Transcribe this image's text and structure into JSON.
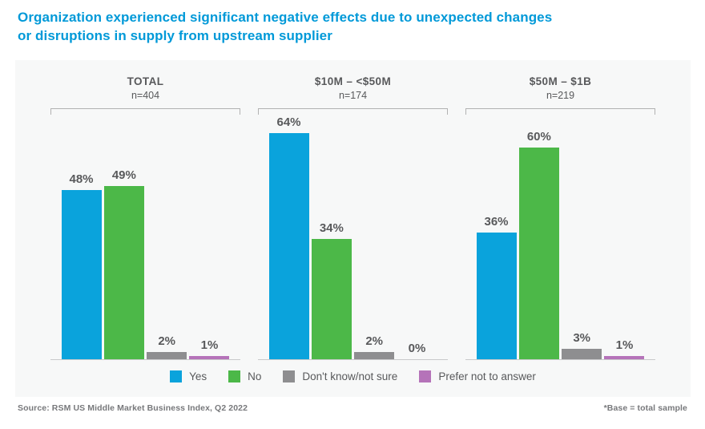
{
  "title": {
    "line1": "Organization experienced significant negative effects due to unexpected changes",
    "line2": "or disruptions in supply from upstream supplier"
  },
  "chart_data": {
    "type": "bar",
    "title": "Organization experienced significant negative effects due to unexpected changes or disruptions in supply from upstream supplier",
    "categories": [
      "Yes",
      "No",
      "Don't know/not sure",
      "Prefer not to answer"
    ],
    "groups": [
      {
        "label": "TOTAL",
        "n": "n=404",
        "values": [
          48,
          49,
          2,
          1
        ]
      },
      {
        "label": "$10M – <$50M",
        "n": "n=174",
        "values": [
          64,
          34,
          2,
          0
        ]
      },
      {
        "label": "$50M – $1B",
        "n": "n=219",
        "values": [
          36,
          60,
          3,
          1
        ]
      }
    ],
    "series_colors": [
      "#0AA3DC",
      "#4CB848",
      "#8E8E90",
      "#B573B9"
    ],
    "value_suffix": "%",
    "ylim": [
      0,
      70
    ],
    "grid": false,
    "legend_position": "bottom"
  },
  "legend": {
    "items": [
      {
        "label": "Yes",
        "color": "#0AA3DC"
      },
      {
        "label": "No",
        "color": "#4CB848"
      },
      {
        "label": "Don't know/not sure",
        "color": "#8E8E90"
      },
      {
        "label": "Prefer not to answer",
        "color": "#B573B9"
      }
    ]
  },
  "footer": {
    "source": "Source: RSM US Middle Market Business Index, Q2 2022",
    "note": "*Base = total sample"
  },
  "colors": {
    "title": "#0099D8",
    "panel_bg": "#F7F8F8",
    "text": "#58595B",
    "footer_text": "#77787B",
    "bracket": "#B2B2B2",
    "baseline": "#C9CACB"
  }
}
